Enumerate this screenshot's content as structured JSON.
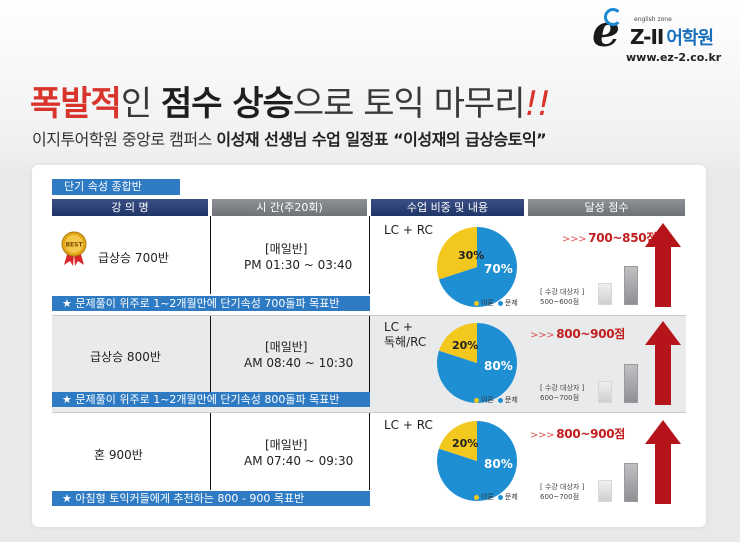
{
  "brand": {
    "zone_text": "english zone",
    "name_latin": "Z-II",
    "name_korean": "어학원",
    "url": "www.ez-2.co.kr"
  },
  "headline": {
    "part_red": "폭발적",
    "part_light1": "인 ",
    "part_bold": "점수 상승",
    "part_light2": "으로 토익 마무리",
    "part_mark": "!!"
  },
  "subheadline": {
    "prefix": "이지투어학원 중앙로 캠퍼스 ",
    "bold": "이성재 선생님 수업 일정표 “이성재의 급상승토익”"
  },
  "table": {
    "section_tag": "단기 속성 종합반",
    "headers": [
      "강 의 명",
      "시 간(주20회)",
      "수업 비중 및 내용",
      "달성 점수"
    ],
    "rows": [
      {
        "name": "급상승 700반",
        "time_label": "[매일반]",
        "time": "PM 01:30 ~ 03:40",
        "content": "LC + RC",
        "pie_small_label": "30%",
        "pie_large_label": "70%",
        "pie_small": 30,
        "pie_large": 70,
        "legend_theory": "이론",
        "legend_problem": "문제",
        "score": "700~850점",
        "targets_line1": "[ 수강 대상자 ]",
        "targets_line2": "500~600점",
        "note": "★ 문제풀이 위주로 1~2개월만에 단기속성 700돌파 목표반"
      },
      {
        "name": "급상승 800반",
        "time_label": "[매일반]",
        "time": "AM 08:40 ~ 10:30",
        "content": "LC +\n독해/RC",
        "pie_small_label": "20%",
        "pie_large_label": "80%",
        "pie_small": 20,
        "pie_large": 80,
        "legend_theory": "이론",
        "legend_problem": "문제",
        "score": "800~900점",
        "targets_line1": "[ 수강 대상자 ]",
        "targets_line2": "600~700점",
        "note": "★ 문제풀이 위주로 1~2개월만에 단기속성 800돌파 목표반"
      },
      {
        "name": "혼 900반",
        "time_label": "[매일반]",
        "time": "AM 07:40 ~ 09:30",
        "content": "LC + RC",
        "pie_small_label": "20%",
        "pie_large_label": "80%",
        "pie_small": 20,
        "pie_large": 80,
        "legend_theory": "이론",
        "legend_problem": "문제",
        "score": "800~900점",
        "targets_line1": "[ 수강 대상자 ]",
        "targets_line2": "600~700점",
        "note": "★ 아침형 토익커들에게 추천하는 800 - 900 목표반"
      }
    ]
  },
  "badge_text": "BEST",
  "colors": {
    "accent_blue": "#2e7bc4",
    "header_navy": "#203566",
    "header_gray": "#7a7e83",
    "pie_yellow": "#f2c81f",
    "pie_blue": "#1f8fd3",
    "score_red": "#c21d1d",
    "arrow_red": "#b5141b"
  }
}
